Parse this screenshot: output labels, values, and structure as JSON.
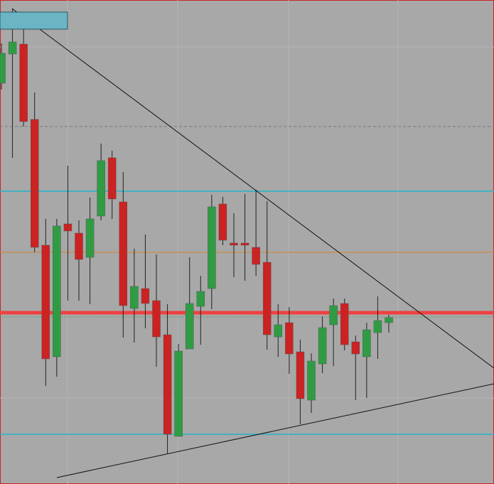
{
  "chart_data": {
    "type": "candlestick",
    "ylim": [
      0,
      681
    ],
    "up_color": "#2f9c44",
    "down_color": "#cc2222",
    "open": [
      564,
      605,
      619,
      513,
      336,
      179,
      366,
      353,
      319,
      377,
      459,
      397,
      247,
      275,
      258,
      210,
      67,
      190,
      250,
      275,
      394,
      339,
      339,
      333,
      312,
      207,
      227,
      186,
      118,
      169,
      224,
      254,
      200,
      179,
      213,
      227
    ],
    "high": [
      620,
      669,
      656,
      551,
      373,
      373,
      448,
      371,
      403,
      479,
      469,
      439,
      331,
      351,
      323,
      253,
      197,
      319,
      293,
      407,
      404,
      381,
      408,
      414,
      398,
      253,
      249,
      203,
      184,
      236,
      261,
      261,
      209,
      227,
      264,
      238
    ],
    "low": [
      555,
      459,
      503,
      326,
      138,
      151,
      258,
      258,
      253,
      371,
      373,
      206,
      199,
      219,
      165,
      43,
      67,
      190,
      196,
      246,
      336,
      291,
      286,
      293,
      189,
      179,
      155,
      84,
      100,
      156,
      166,
      188,
      118,
      121,
      176,
      213
    ],
    "close": [
      606,
      622,
      510,
      333,
      176,
      363,
      356,
      316,
      373,
      455,
      401,
      251,
      278,
      254,
      207,
      70,
      187,
      254,
      271,
      390,
      343,
      336,
      336,
      309,
      210,
      224,
      183,
      120,
      173,
      220,
      251,
      196,
      183,
      217,
      230,
      234
    ],
    "levels": [
      {
        "value": 503,
        "color": "#7a7a7a",
        "style": "dashed",
        "width": 1
      },
      {
        "value": 412,
        "color": "#22b4c8",
        "style": "solid",
        "width": 1.5
      },
      {
        "value": 326,
        "color": "#d9822b",
        "style": "solid",
        "width": 1
      },
      {
        "value": 241,
        "color": "#f04040",
        "style": "solid",
        "width": 5
      },
      {
        "value": 235,
        "color": "#2e9b43",
        "style": "dotted",
        "width": 1
      },
      {
        "value": 70,
        "color": "#22b4c8",
        "style": "solid",
        "width": 1.5
      }
    ]
  }
}
